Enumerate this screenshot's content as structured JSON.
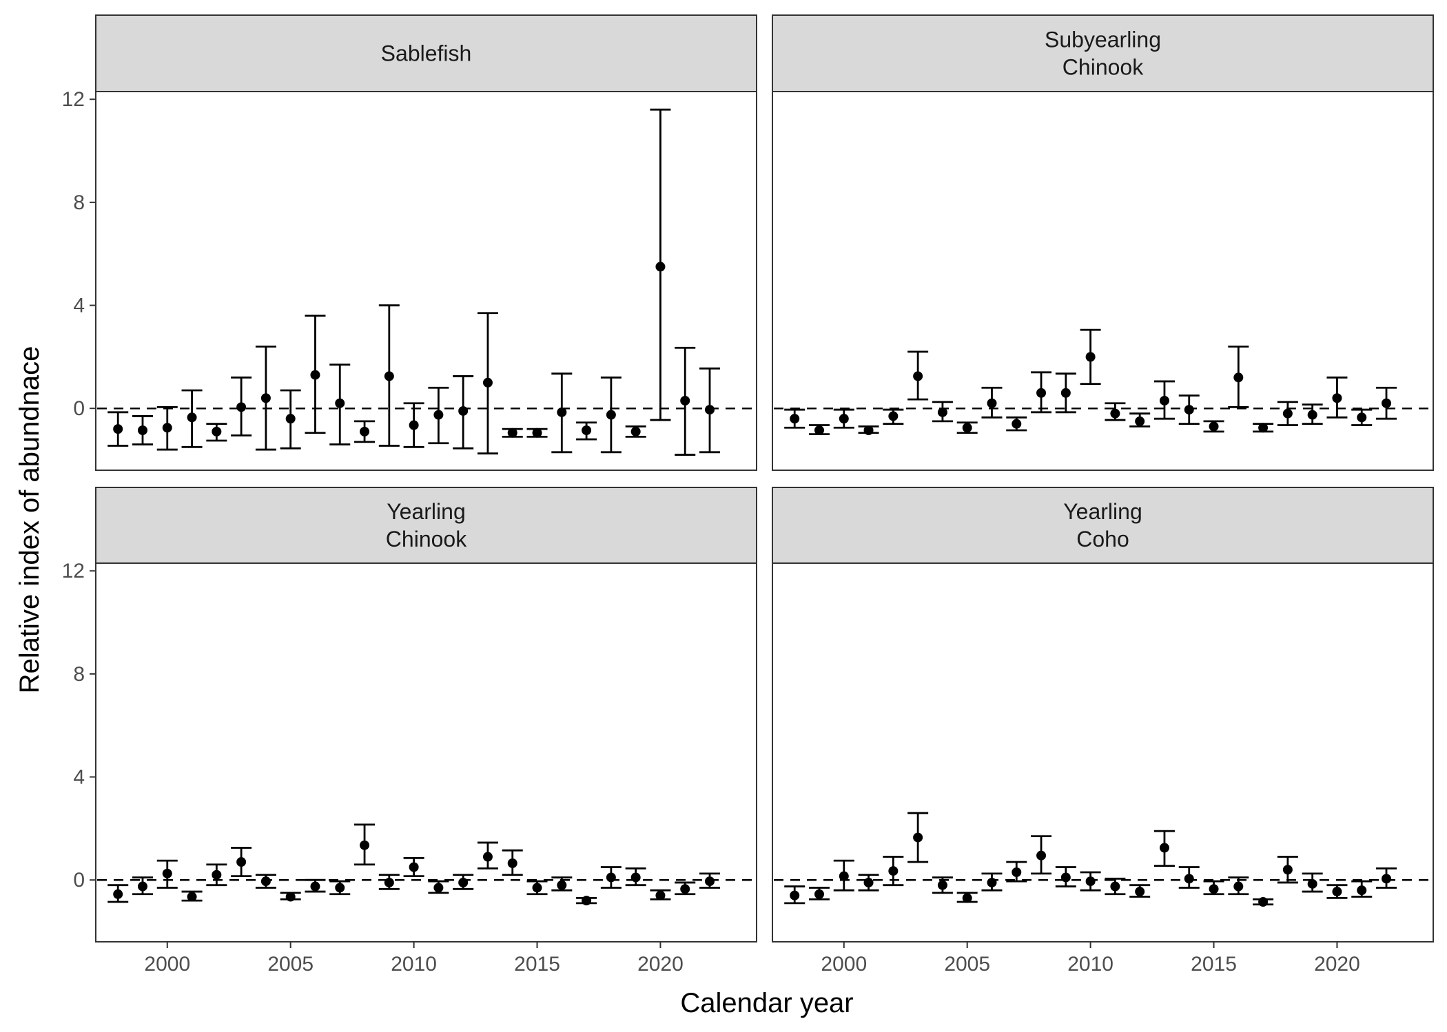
{
  "chart_data": {
    "type": "scatter",
    "subtype": "point-with-error-bars, faceted 2x2",
    "xlabel": "Calendar year",
    "ylabel": "Relative index of abundnace",
    "x_ticks": [
      2000,
      2005,
      2010,
      2015,
      2020
    ],
    "y_ticks": [
      0,
      4,
      8,
      12
    ],
    "xlim": [
      1997.1,
      2023.9
    ],
    "ylim": [
      -2.4,
      12.3
    ],
    "reference_line": {
      "y": 0,
      "style": "dashed"
    },
    "grid": false,
    "legend": "none",
    "colors": {
      "points": "#000000",
      "strip_fill": "#d9d9d9",
      "panel_border": "#333333"
    },
    "panels": [
      {
        "strip": [
          "Sablefish"
        ],
        "x": [
          1998,
          1999,
          2000,
          2001,
          2002,
          2003,
          2004,
          2005,
          2006,
          2007,
          2008,
          2009,
          2010,
          2011,
          2012,
          2013,
          2014,
          2015,
          2016,
          2017,
          2018,
          2019,
          2020,
          2021,
          2022
        ],
        "y": [
          -0.8,
          -0.85,
          -0.75,
          -0.35,
          -0.9,
          0.05,
          0.4,
          -0.4,
          1.3,
          0.2,
          -0.9,
          1.25,
          -0.65,
          -0.25,
          -0.1,
          1.0,
          -0.95,
          -0.95,
          -0.15,
          -0.85,
          -0.25,
          -0.9,
          5.5,
          0.3,
          -0.05
        ],
        "ymin": [
          -1.45,
          -1.4,
          -1.6,
          -1.5,
          -1.25,
          -1.05,
          -1.6,
          -1.55,
          -0.95,
          -1.4,
          -1.3,
          -1.45,
          -1.5,
          -1.35,
          -1.55,
          -1.75,
          -1.1,
          -1.1,
          -1.7,
          -1.2,
          -1.7,
          -1.1,
          -0.45,
          -1.8,
          -1.7
        ],
        "ymax": [
          -0.15,
          -0.3,
          0.05,
          0.7,
          -0.6,
          1.2,
          2.4,
          0.7,
          3.6,
          1.7,
          -0.5,
          4.0,
          0.2,
          0.8,
          1.25,
          3.7,
          -0.8,
          -0.8,
          1.35,
          -0.55,
          1.2,
          -0.7,
          11.6,
          2.35,
          1.55
        ]
      },
      {
        "strip": [
          "Subyearling",
          "Chinook"
        ],
        "x": [
          1998,
          1999,
          2000,
          2001,
          2002,
          2003,
          2004,
          2005,
          2006,
          2007,
          2008,
          2009,
          2010,
          2011,
          2012,
          2013,
          2014,
          2015,
          2016,
          2017,
          2018,
          2019,
          2020,
          2021,
          2022
        ],
        "y": [
          -0.4,
          -0.85,
          -0.4,
          -0.85,
          -0.3,
          1.25,
          -0.15,
          -0.75,
          0.2,
          -0.6,
          0.6,
          0.6,
          2.0,
          -0.2,
          -0.5,
          0.3,
          -0.05,
          -0.7,
          1.2,
          -0.75,
          -0.2,
          -0.25,
          0.4,
          -0.35,
          0.2
        ],
        "ymin": [
          -0.75,
          -1.0,
          -0.75,
          -0.95,
          -0.6,
          0.35,
          -0.5,
          -0.95,
          -0.35,
          -0.85,
          -0.15,
          -0.15,
          0.95,
          -0.45,
          -0.7,
          -0.4,
          -0.6,
          -0.9,
          0.05,
          -0.9,
          -0.65,
          -0.6,
          -0.35,
          -0.65,
          -0.4
        ],
        "ymax": [
          -0.05,
          -0.65,
          -0.05,
          -0.7,
          -0.05,
          2.2,
          0.25,
          -0.55,
          0.8,
          -0.35,
          1.4,
          1.35,
          3.05,
          0.2,
          -0.2,
          1.05,
          0.5,
          -0.5,
          2.4,
          -0.6,
          0.25,
          0.15,
          1.2,
          -0.05,
          0.8
        ]
      },
      {
        "strip": [
          "Yearling",
          "Chinook"
        ],
        "x": [
          1998,
          1999,
          2000,
          2001,
          2002,
          2003,
          2004,
          2005,
          2006,
          2007,
          2008,
          2009,
          2010,
          2011,
          2012,
          2013,
          2014,
          2015,
          2016,
          2017,
          2018,
          2019,
          2020,
          2021,
          2022
        ],
        "y": [
          -0.55,
          -0.25,
          0.25,
          -0.65,
          0.2,
          0.7,
          -0.05,
          -0.65,
          -0.25,
          -0.3,
          1.35,
          -0.1,
          0.5,
          -0.3,
          -0.1,
          0.9,
          0.65,
          -0.3,
          -0.2,
          -0.8,
          0.1,
          0.1,
          -0.6,
          -0.35,
          -0.05
        ],
        "ymin": [
          -0.85,
          -0.55,
          -0.3,
          -0.8,
          -0.2,
          0.15,
          -0.3,
          -0.75,
          -0.45,
          -0.55,
          0.6,
          -0.35,
          0.15,
          -0.5,
          -0.35,
          0.45,
          0.2,
          -0.55,
          -0.4,
          -0.9,
          -0.3,
          -0.2,
          -0.75,
          -0.55,
          -0.3
        ],
        "ymax": [
          -0.2,
          0.1,
          0.75,
          -0.45,
          0.6,
          1.25,
          0.2,
          -0.5,
          0.0,
          -0.05,
          2.15,
          0.2,
          0.85,
          -0.05,
          0.2,
          1.45,
          1.15,
          -0.05,
          0.1,
          -0.7,
          0.5,
          0.45,
          -0.4,
          -0.1,
          0.25
        ]
      },
      {
        "strip": [
          "Yearling",
          "Coho"
        ],
        "x": [
          1998,
          1999,
          2000,
          2001,
          2002,
          2003,
          2004,
          2005,
          2006,
          2007,
          2008,
          2009,
          2010,
          2011,
          2012,
          2013,
          2014,
          2015,
          2016,
          2017,
          2018,
          2019,
          2020,
          2021,
          2022
        ],
        "y": [
          -0.6,
          -0.55,
          0.15,
          -0.1,
          0.35,
          1.65,
          -0.2,
          -0.7,
          -0.1,
          0.3,
          0.95,
          0.1,
          -0.05,
          -0.25,
          -0.45,
          1.25,
          0.05,
          -0.35,
          -0.25,
          -0.85,
          0.4,
          -0.15,
          -0.45,
          -0.4,
          0.05
        ],
        "ymin": [
          -0.9,
          -0.75,
          -0.4,
          -0.4,
          -0.2,
          0.7,
          -0.5,
          -0.85,
          -0.4,
          -0.05,
          0.25,
          -0.25,
          -0.4,
          -0.55,
          -0.65,
          0.55,
          -0.3,
          -0.55,
          -0.55,
          -0.95,
          -0.1,
          -0.45,
          -0.7,
          -0.65,
          -0.3
        ],
        "ymax": [
          -0.25,
          -0.3,
          0.75,
          0.2,
          0.9,
          2.6,
          0.1,
          -0.5,
          0.25,
          0.7,
          1.7,
          0.5,
          0.3,
          0.05,
          -0.2,
          1.9,
          0.5,
          -0.05,
          0.1,
          -0.75,
          0.9,
          0.25,
          -0.2,
          -0.05,
          0.45
        ]
      }
    ]
  }
}
